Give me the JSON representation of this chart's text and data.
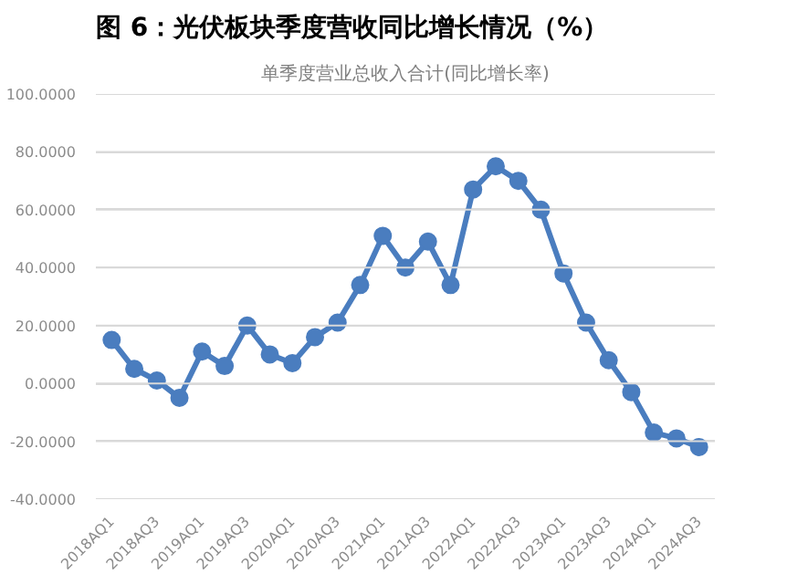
{
  "chart_data": {
    "type": "line",
    "title": "图 6：光伏板块季度营收同比增长情况（%）",
    "subtitle": "单季度营业总收入合计(同比增长率)",
    "categories": [
      "2018AQ1",
      null,
      "2018AQ3",
      null,
      "2019AQ1",
      null,
      "2019AQ3",
      null,
      "2020AQ1",
      null,
      "2020AQ3",
      null,
      "2021AQ1",
      null,
      "2021AQ3",
      null,
      "2022AQ1",
      null,
      "2022AQ3",
      null,
      "2023AQ1",
      null,
      "2023AQ3",
      null,
      "2024AQ1",
      null,
      "2024AQ3"
    ],
    "series": [
      {
        "color": "#4a7dbf",
        "values": [
          15,
          5,
          1,
          -5,
          11,
          6,
          20,
          10,
          7,
          16,
          21,
          34,
          51,
          40,
          49,
          34,
          67,
          75,
          70,
          60,
          38,
          21,
          8,
          -3,
          -17,
          -19,
          -22
        ]
      }
    ],
    "ylim": [
      -40,
      100
    ],
    "yticks": [
      {
        "value": -40,
        "label": "-40.0000"
      },
      {
        "value": -20,
        "label": "-20.0000"
      },
      {
        "value": 0,
        "label": "0.0000"
      },
      {
        "value": 20,
        "label": "20.0000"
      },
      {
        "value": 40,
        "label": "40.0000"
      },
      {
        "value": 60,
        "label": "60.0000"
      },
      {
        "value": 80,
        "label": "80.0000"
      },
      {
        "value": 100,
        "label": "100.0000"
      }
    ],
    "grid": "y",
    "marker": "circle",
    "line_style": "solid"
  }
}
